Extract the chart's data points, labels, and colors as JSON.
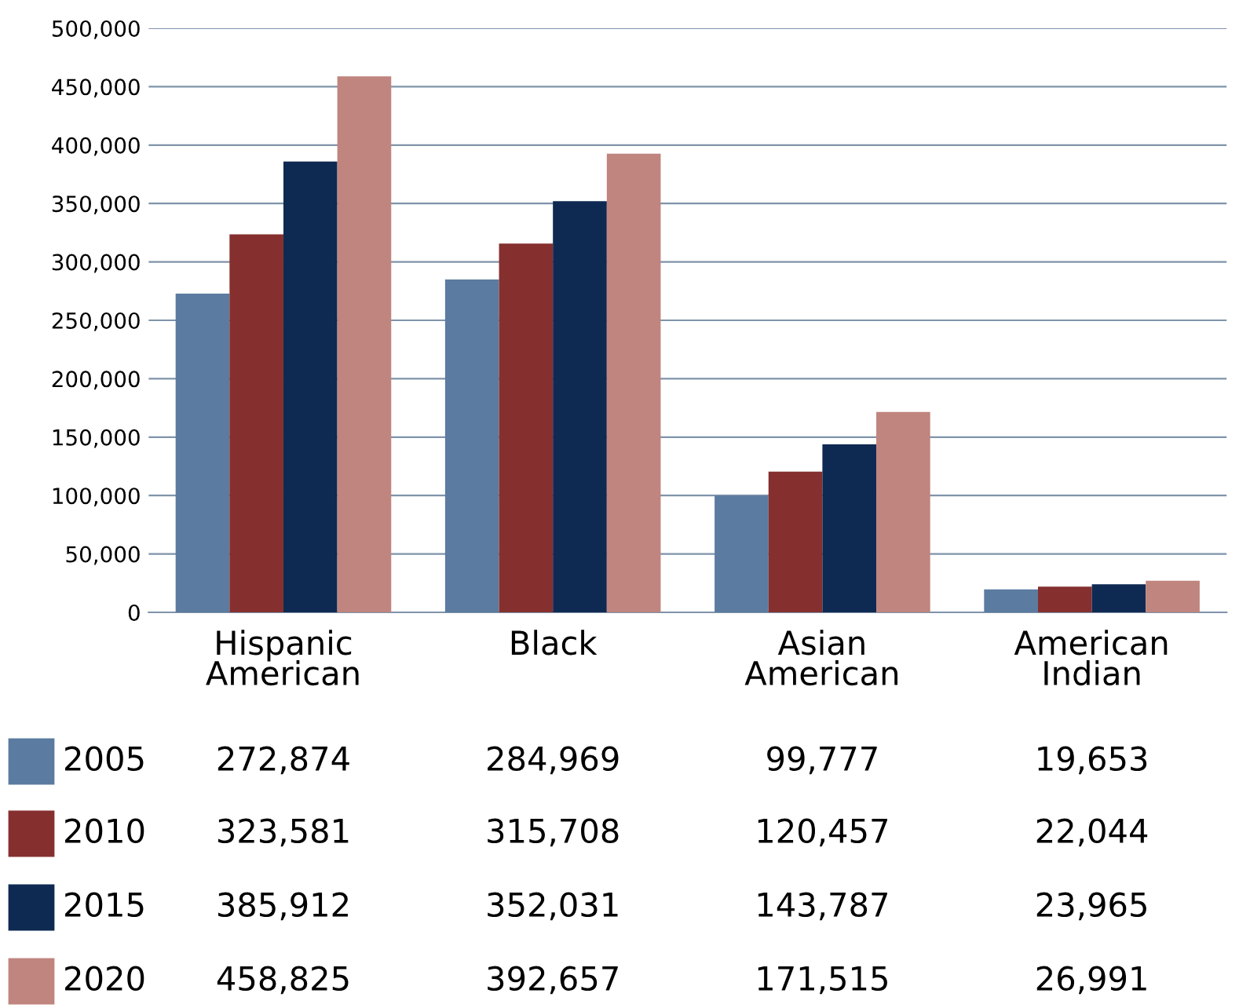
{
  "chart_data": {
    "type": "bar",
    "categories": [
      "Hispanic\nAmerican",
      "Black",
      "Asian\nAmerican",
      "American\nIndian"
    ],
    "series": [
      {
        "name": "2005",
        "color": "#5b7ba0",
        "values": [
          272874,
          284969,
          99777,
          19653
        ],
        "value_labels": [
          "272,874",
          "284,969",
          "99,777",
          "19,653"
        ]
      },
      {
        "name": "2010",
        "color": "#85302f",
        "values": [
          323581,
          315708,
          120457,
          22044
        ],
        "value_labels": [
          "323,581",
          "315,708",
          "120,457",
          "22,044"
        ]
      },
      {
        "name": "2015",
        "color": "#0f2a52",
        "values": [
          385912,
          352031,
          143787,
          23965
        ],
        "value_labels": [
          "385,912",
          "352,031",
          "143,787",
          "23,965"
        ]
      },
      {
        "name": "2020",
        "color": "#c0857e",
        "values": [
          458825,
          392657,
          171515,
          26991
        ],
        "value_labels": [
          "458,825",
          "392,657",
          "171,515",
          "26,991"
        ]
      }
    ],
    "ylim": [
      0,
      500000
    ],
    "yticks": [
      {
        "value": 0,
        "label": "0"
      },
      {
        "value": 50000,
        "label": "50,000"
      },
      {
        "value": 100000,
        "label": "100,000"
      },
      {
        "value": 150000,
        "label": "150,000"
      },
      {
        "value": 200000,
        "label": "200,000"
      },
      {
        "value": 250000,
        "label": "250,000"
      },
      {
        "value": 300000,
        "label": "300,000"
      },
      {
        "value": 350000,
        "label": "350,000"
      },
      {
        "value": 400000,
        "label": "400,000"
      },
      {
        "value": 450000,
        "label": "450,000"
      },
      {
        "value": 500000,
        "label": "500,000"
      }
    ],
    "grid": "y",
    "legend": "bottom left"
  }
}
